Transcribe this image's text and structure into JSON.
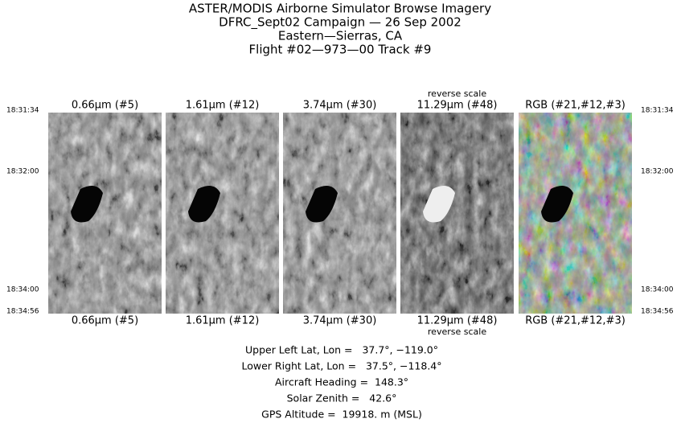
{
  "header": {
    "lines": [
      "ASTER/MODIS Airborne Simulator Browse Imagery",
      "DFRC_Sept02 Campaign — 26 Sep 2002",
      "Eastern—Sierras, CA",
      "Flight #02—973—00 Track #9"
    ]
  },
  "panels": [
    {
      "top_label": "0.66μm (#5)",
      "bottom_label": "0.66μm (#5)"
    },
    {
      "top_label": "1.61μm (#12)",
      "bottom_label": "1.61μm (#12)"
    },
    {
      "top_label": "3.74μm (#30)",
      "bottom_label": "3.74μm (#30)"
    },
    {
      "top_label": "11.29μm (#48)",
      "bottom_label": "11.29μm (#48)",
      "note_top": "reverse scale",
      "note_bottom": "reverse scale"
    },
    {
      "top_label": "RGB (#21,#12,#3)",
      "bottom_label": "RGB (#21,#12,#3)"
    }
  ],
  "times": [
    "18:31:34",
    "18:32:00",
    "18:34:00",
    "18:34:56"
  ],
  "info": [
    "Upper Left Lat, Lon =   37.7°, −119.0°",
    "Lower Right Lat, Lon =   37.5°, −118.4°",
    "Aircraft Heading =  148.3°",
    "Solar Zenith =   42.6°",
    "GPS Altitude =  19918. m (MSL)"
  ]
}
